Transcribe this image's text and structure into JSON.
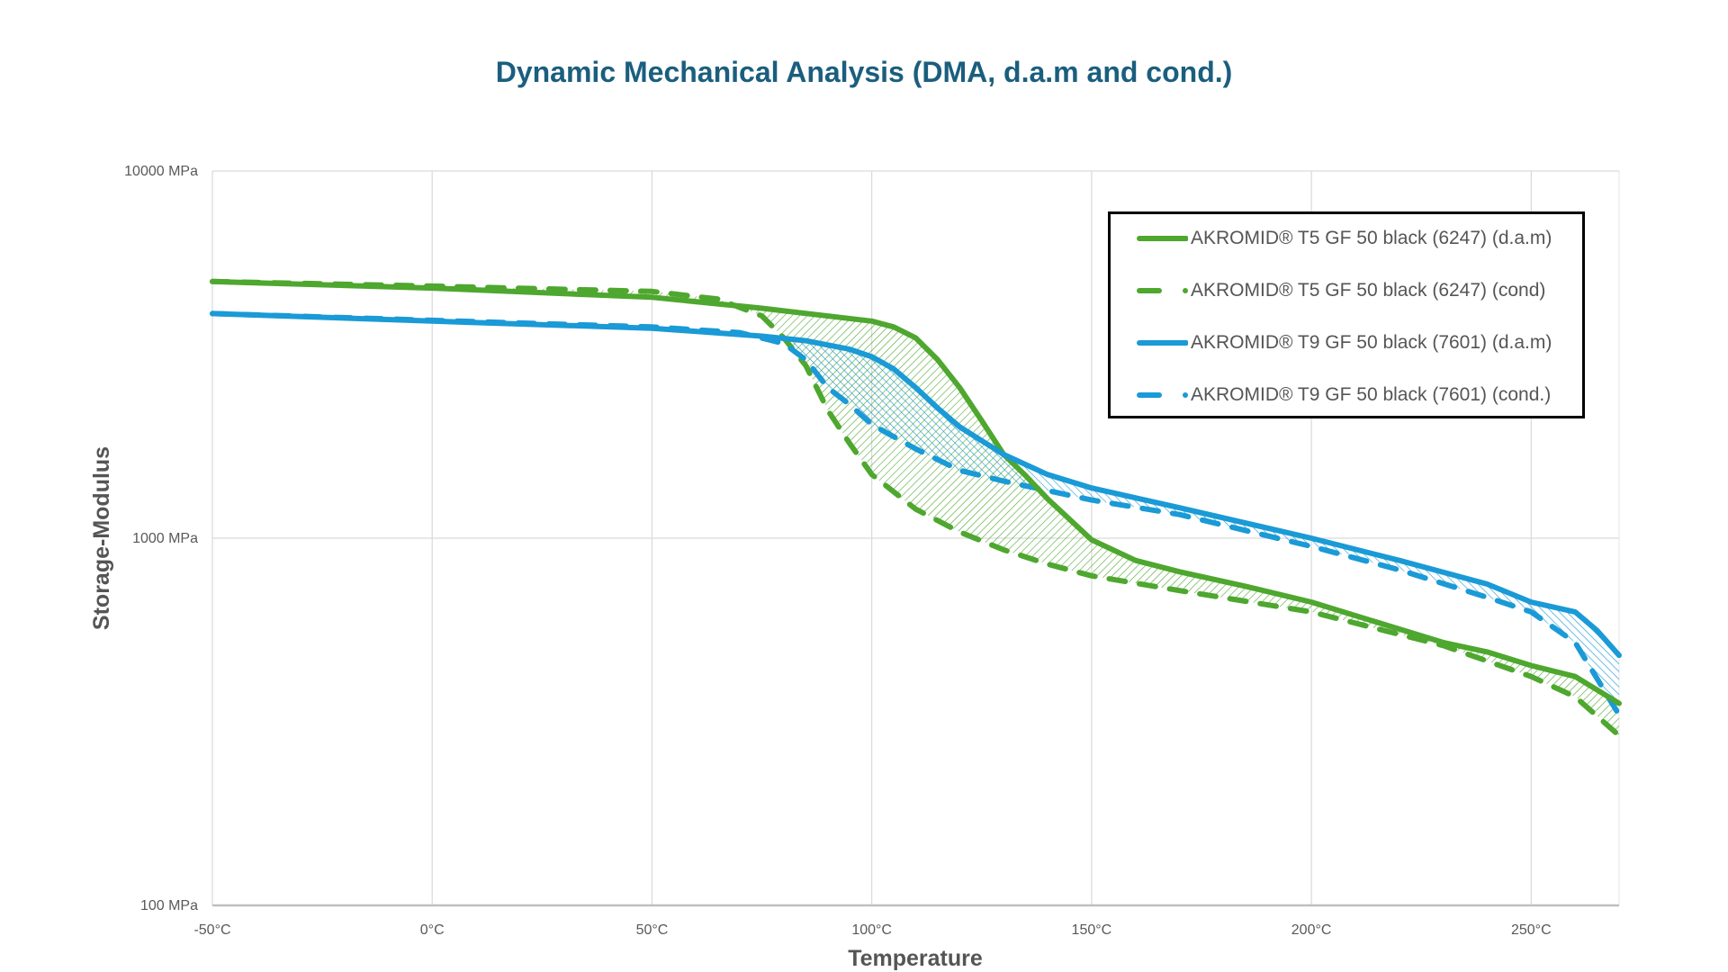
{
  "chart_data": {
    "type": "line",
    "title": "Dynamic Mechanical Analysis (DMA, d.a.m and cond.)",
    "xlabel": "Temperature",
    "ylabel": "Storage-Modulus",
    "xlim": [
      -50,
      270
    ],
    "ylim": [
      100,
      10000
    ],
    "yscale": "log",
    "grid": true,
    "legend_position": "top-right",
    "x_ticks": [
      -50,
      0,
      50,
      100,
      150,
      200,
      250
    ],
    "x_tick_labels": [
      "-50°C",
      "0°C",
      "50°C",
      "100°C",
      "150°C",
      "200°C",
      "250°C"
    ],
    "y_ticks": [
      100,
      1000,
      10000
    ],
    "y_tick_labels": [
      "100 MPa",
      "1000 MPa",
      "10000 MPa"
    ],
    "series": [
      {
        "name": "AKROMID® T5 GF 50 black (6247) (d.a.m)",
        "color": "#4ea72e",
        "style": "solid",
        "x": [
          -50,
          0,
          50,
          75,
          100,
          105,
          110,
          115,
          120,
          125,
          130,
          135,
          140,
          150,
          160,
          170,
          185,
          200,
          215,
          230,
          240,
          250,
          260,
          270
        ],
        "y": [
          5000,
          4800,
          4530,
          4230,
          3900,
          3760,
          3510,
          3060,
          2570,
          2090,
          1690,
          1480,
          1280,
          990,
          870,
          810,
          740,
          670,
          590,
          520,
          490,
          450,
          420,
          355
        ]
      },
      {
        "name": "AKROMID® T5 GF 50 black (6247) (cond)",
        "color": "#4ea72e",
        "style": "dashed",
        "x": [
          -50,
          0,
          50,
          65,
          75,
          80,
          85,
          90,
          95,
          100,
          110,
          120,
          130,
          140,
          150,
          170,
          200,
          230,
          250,
          260,
          270
        ],
        "y": [
          5000,
          4860,
          4700,
          4480,
          4030,
          3510,
          2950,
          2230,
          1810,
          1490,
          1200,
          1040,
          930,
          850,
          790,
          720,
          630,
          510,
          420,
          370,
          290
        ]
      },
      {
        "name": "AKROMID® T9 GF 50 black (7601) (d.a.m)",
        "color": "#1a9ad6",
        "style": "solid",
        "x": [
          -50,
          0,
          50,
          75,
          85,
          95,
          100,
          105,
          110,
          115,
          120,
          130,
          140,
          150,
          170,
          200,
          220,
          240,
          250,
          260,
          265,
          270
        ],
        "y": [
          4090,
          3900,
          3730,
          3550,
          3450,
          3270,
          3120,
          2890,
          2570,
          2260,
          2010,
          1690,
          1490,
          1370,
          1210,
          1000,
          870,
          750,
          670,
          630,
          560,
          480
        ]
      },
      {
        "name": "AKROMID® T9 GF 50 black (7601) (cond.)",
        "color": "#1a9ad6",
        "style": "dashed",
        "x": [
          -50,
          0,
          50,
          70,
          80,
          85,
          90,
          95,
          100,
          110,
          120,
          130,
          150,
          170,
          200,
          220,
          240,
          250,
          260,
          270
        ],
        "y": [
          4090,
          3920,
          3760,
          3630,
          3390,
          3060,
          2570,
          2310,
          2040,
          1750,
          1530,
          1430,
          1270,
          1160,
          950,
          820,
          690,
          630,
          520,
          330
        ]
      }
    ]
  }
}
